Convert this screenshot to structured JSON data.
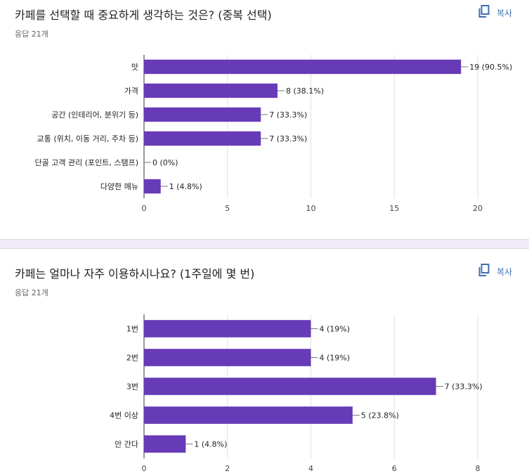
{
  "card1": {
    "title": "카페를 선택할 때 중요하게 생각하는 것은? (중복 선택)",
    "responses": "응답 21개",
    "copy_label": "복사"
  },
  "card2": {
    "title": "카페는 얼마나 자주 이용하시나요? (1주일에 몇 번)",
    "responses": "응답 21개",
    "copy_label": "복사"
  },
  "colors": {
    "bar": "#673ab7",
    "grid": "#e0e0e0",
    "axis": "#333333"
  },
  "chart_data": [
    {
      "type": "bar",
      "orientation": "horizontal",
      "categories": [
        "맛",
        "가격",
        "공간 (인테리어, 분위기 등)",
        "교통 (위치, 이동 거리, 주차 등)",
        "단골 고객 관리 (포인트, 스탬프)",
        "다양한 메뉴"
      ],
      "values": [
        19,
        8,
        7,
        7,
        0,
        1
      ],
      "data_labels": [
        "19 (90.5%)",
        "8 (38.1%)",
        "7 (33.3%)",
        "7 (33.3%)",
        "0 (0%)",
        "1 (4.8%)"
      ],
      "xlim": [
        0,
        20
      ],
      "xticks": [
        "0",
        "5",
        "10",
        "15",
        "20"
      ],
      "grid": true
    },
    {
      "type": "bar",
      "orientation": "horizontal",
      "categories": [
        "1번",
        "2번",
        "3번",
        "4번 이상",
        "안 간다"
      ],
      "values": [
        4,
        4,
        7,
        5,
        1
      ],
      "data_labels": [
        "4 (19%)",
        "4 (19%)",
        "7 (33.3%)",
        "5 (23.8%)",
        "1 (4.8%)"
      ],
      "xlim": [
        0,
        8
      ],
      "xticks": [
        "0",
        "2",
        "4",
        "6",
        "8"
      ],
      "grid": true
    }
  ]
}
